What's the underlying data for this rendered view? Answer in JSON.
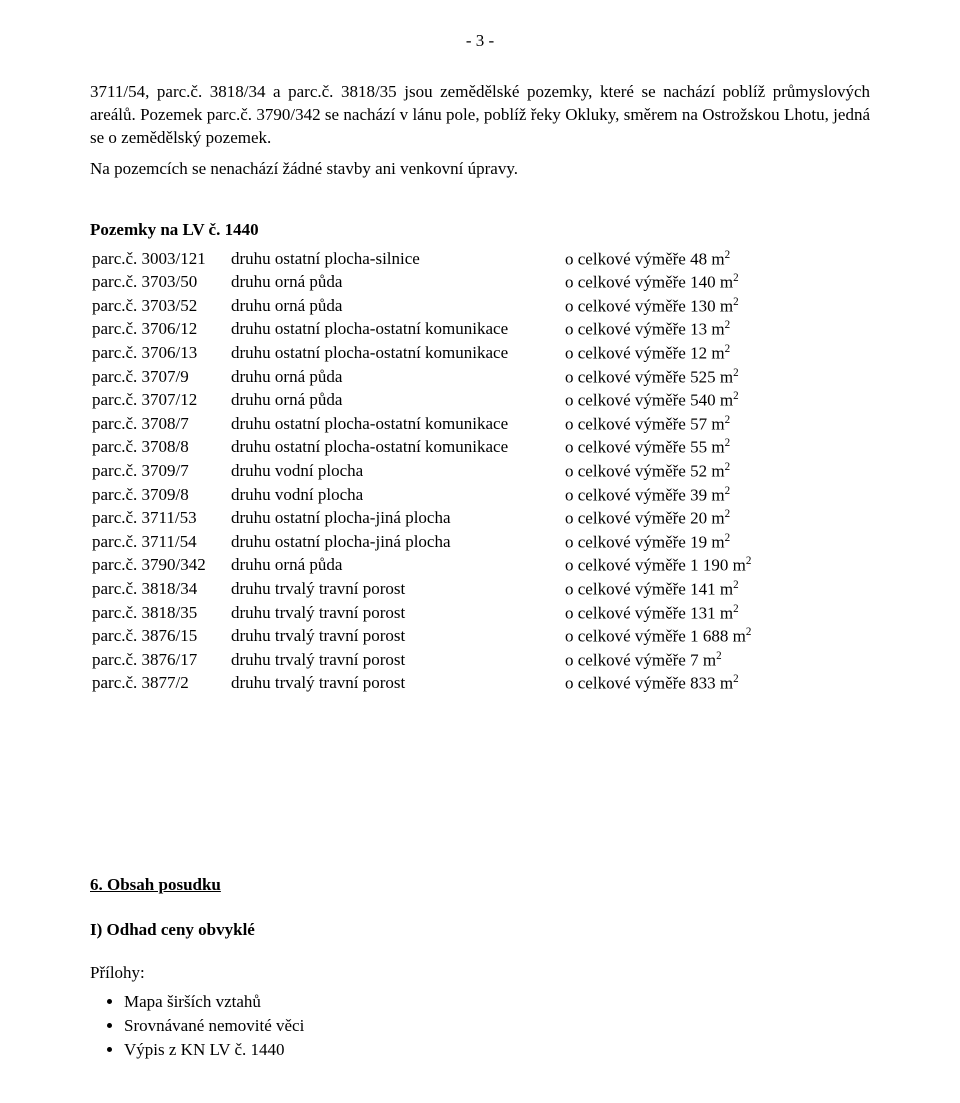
{
  "page_number_text": "- 3 -",
  "paragraph1": "3711/54, parc.č. 3818/34 a parc.č. 3818/35 jsou zemědělské pozemky, které se nachází poblíž průmyslových areálů. Pozemek parc.č. 3790/342 se nachází v lánu pole, poblíž řeky Okluky, směrem na Ostrožskou Lhotu, jedná se o zemědělský pozemek.",
  "paragraph2": "Na pozemcích se nenachází žádné stavby ani venkovní úpravy.",
  "section_title": "Pozemky na LV č. 1440",
  "col_prefix": "parc.č. ",
  "area_prefix": "o celkové výměře ",
  "area_unit_base": "m",
  "area_unit_sup": "2",
  "rows": [
    {
      "p": "3003/121",
      "d": "druhu ostatní plocha-silnice",
      "a": "48"
    },
    {
      "p": "3703/50",
      "d": "druhu orná půda",
      "a": "140"
    },
    {
      "p": "3703/52",
      "d": "druhu orná půda",
      "a": "130"
    },
    {
      "p": "3706/12",
      "d": "druhu ostatní plocha-ostatní komunikace",
      "a": "13"
    },
    {
      "p": "3706/13",
      "d": "druhu ostatní plocha-ostatní komunikace",
      "a": "12"
    },
    {
      "p": "3707/9",
      "d": "druhu orná půda",
      "a": "525"
    },
    {
      "p": "3707/12",
      "d": "druhu orná půda",
      "a": "540"
    },
    {
      "p": "3708/7",
      "d": "druhu ostatní plocha-ostatní komunikace",
      "a": "57"
    },
    {
      "p": "3708/8",
      "d": "druhu ostatní plocha-ostatní komunikace",
      "a": "55"
    },
    {
      "p": "3709/7",
      "d": "druhu vodní plocha",
      "a": "52"
    },
    {
      "p": "3709/8",
      "d": "druhu vodní plocha",
      "a": "39"
    },
    {
      "p": "3711/53",
      "d": "druhu ostatní plocha-jiná plocha",
      "a": "20"
    },
    {
      "p": "3711/54",
      "d": "druhu ostatní plocha-jiná plocha",
      "a": "19"
    },
    {
      "p": "3790/342",
      "d": "druhu orná půda",
      "a": "1 190"
    },
    {
      "p": "3818/34",
      "d": "druhu trvalý travní porost",
      "a": "141"
    },
    {
      "p": "3818/35",
      "d": "druhu trvalý travní porost",
      "a": "131"
    },
    {
      "p": "3876/15",
      "d": "druhu trvalý travní porost",
      "a": "1 688"
    },
    {
      "p": "3876/17",
      "d": "druhu trvalý travní porost",
      "a": "7"
    },
    {
      "p": "3877/2",
      "d": "druhu trvalý travní porost",
      "a": "833"
    }
  ],
  "section6_title": "6. Obsah posudku",
  "subsectionI_title": "I) Odhad ceny obvyklé",
  "attachments_label": "Přílohy:",
  "attachments": [
    "Mapa širších vztahů",
    "Srovnávané nemovité věci",
    "Výpis z KN LV č. 1440"
  ]
}
